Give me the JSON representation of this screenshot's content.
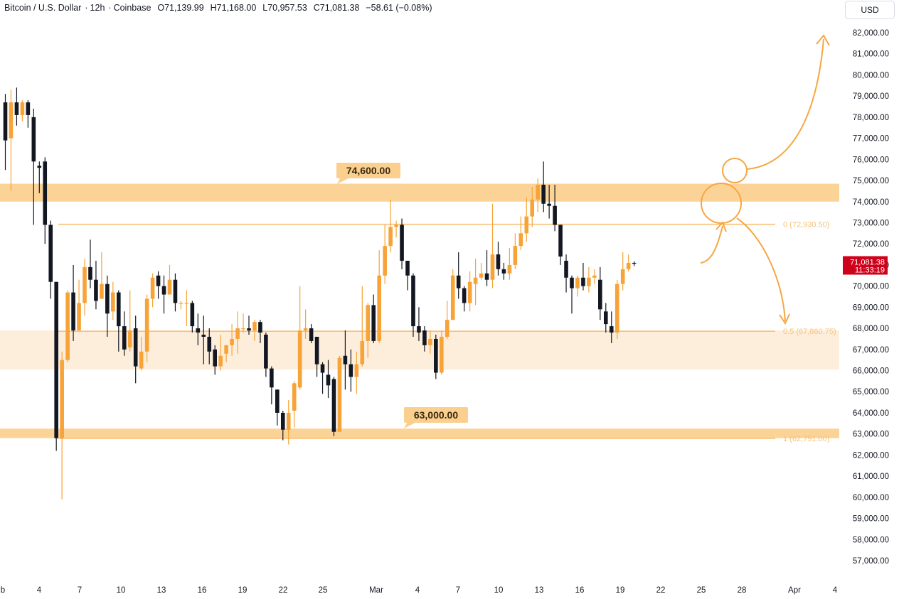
{
  "header": {
    "symbol": "Bitcoin / U.S. Dollar",
    "interval": "12h",
    "exchange": "Coinbase",
    "open": "O71,139.99",
    "high": "H71,168.00",
    "low": "L70,957.53",
    "close": "C71,081.38",
    "change": "−58.61 (−0.08%)"
  },
  "currency_button": "USD",
  "price_tag": {
    "price": "71,081.38",
    "countdown": "11:33:19"
  },
  "colors": {
    "up": "#f7a338",
    "down": "#131722",
    "zone": "#fcd397",
    "zone_light": "#fdeedc",
    "line": "#f9b864",
    "accent": "#f5a742",
    "tag": "#d0021b"
  },
  "chart_data": {
    "type": "candlestick",
    "title": "Bitcoin / U.S. Dollar · 12h · Coinbase",
    "ylabel": "USD",
    "ylim": [
      56000,
      83500
    ],
    "y_ticks": [
      "82,000.00",
      "81,000.00",
      "80,000.00",
      "79,000.00",
      "78,000.00",
      "77,000.00",
      "76,000.00",
      "75,000.00",
      "74,000.00",
      "73,000.00",
      "72,000.00",
      "71,000.00",
      "70,000.00",
      "69,000.00",
      "68,000.00",
      "67,000.00",
      "66,000.00",
      "65,000.00",
      "64,000.00",
      "63,000.00",
      "62,000.00",
      "61,000.00",
      "60,000.00",
      "59,000.00",
      "58,000.00",
      "57,000.00"
    ],
    "x_ticks": [
      "b",
      "4",
      "7",
      "10",
      "13",
      "16",
      "19",
      "22",
      "25",
      "Mar",
      "4",
      "7",
      "10",
      "13",
      "16",
      "19",
      "22",
      "25",
      "28",
      "Apr",
      "4"
    ],
    "candles": [
      [
        78700,
        76900,
        79100,
        75500
      ],
      [
        77000,
        78700,
        79300,
        74500
      ],
      [
        78700,
        78100,
        79400,
        77600
      ],
      [
        78100,
        78700,
        78800,
        77800
      ],
      [
        78700,
        78100,
        78800,
        77500
      ],
      [
        78000,
        75900,
        78400,
        72900
      ],
      [
        75700,
        75600,
        75900,
        74400
      ],
      [
        75900,
        72900,
        76100,
        72000
      ],
      [
        72900,
        70200,
        73100,
        69400
      ],
      [
        70200,
        62800,
        70200,
        62200
      ],
      [
        62800,
        66500,
        66900,
        59900
      ],
      [
        66500,
        69700,
        69800,
        66400
      ],
      [
        69700,
        67900,
        71000,
        67400
      ],
      [
        67900,
        69200,
        70300,
        68100
      ],
      [
        69200,
        70900,
        71300,
        68600
      ],
      [
        70900,
        70300,
        72200,
        69900
      ],
      [
        70300,
        69300,
        71200,
        68900
      ],
      [
        69400,
        70100,
        71600,
        69800
      ],
      [
        70100,
        68700,
        70500,
        67600
      ],
      [
        68800,
        69700,
        70200,
        68400
      ],
      [
        69700,
        68100,
        69800,
        66900
      ],
      [
        68100,
        67000,
        68800,
        66700
      ],
      [
        67100,
        67900,
        69800,
        66900
      ],
      [
        68000,
        66200,
        68600,
        65400
      ],
      [
        66100,
        66900,
        67600,
        66000
      ],
      [
        66900,
        69400,
        69600,
        66400
      ],
      [
        69400,
        70400,
        70600,
        69000
      ],
      [
        70500,
        70000,
        70700,
        69400
      ],
      [
        70000,
        69600,
        70500,
        68700
      ],
      [
        69600,
        70300,
        71000,
        69900
      ],
      [
        70300,
        69200,
        70600,
        68800
      ],
      [
        69200,
        69200,
        69300,
        68900
      ],
      [
        69200,
        69200,
        69800,
        68100
      ],
      [
        69200,
        68100,
        69300,
        67800
      ],
      [
        68000,
        67800,
        68700,
        67200
      ],
      [
        67700,
        67600,
        68600,
        66300
      ],
      [
        67600,
        66900,
        68000,
        66300
      ],
      [
        67000,
        66200,
        67200,
        65800
      ],
      [
        66200,
        66700,
        67700,
        66000
      ],
      [
        66800,
        67200,
        67200,
        66400
      ],
      [
        67200,
        67500,
        68200,
        66700
      ],
      [
        67500,
        68000,
        68800,
        66800
      ],
      [
        68000,
        68000,
        68700,
        67800
      ],
      [
        68000,
        67900,
        68600,
        67700
      ],
      [
        67900,
        68300,
        68400,
        67400
      ],
      [
        68300,
        67800,
        68400,
        67300
      ],
      [
        67700,
        66100,
        67800,
        65700
      ],
      [
        66100,
        65200,
        66200,
        64400
      ],
      [
        65100,
        64000,
        65100,
        63400
      ],
      [
        64000,
        63200,
        64100,
        62700
      ],
      [
        63200,
        64000,
        64600,
        62500
      ],
      [
        64100,
        65400,
        65500,
        63300
      ],
      [
        65200,
        67900,
        70000,
        65100
      ],
      [
        67900,
        68000,
        68900,
        67500
      ],
      [
        68000,
        67400,
        68200,
        67300
      ],
      [
        67600,
        66300,
        67600,
        65700
      ],
      [
        66300,
        65900,
        66400,
        64900
      ],
      [
        65800,
        65300,
        66500,
        64700
      ],
      [
        65600,
        63100,
        65700,
        62900
      ],
      [
        63100,
        66600,
        66700,
        63100
      ],
      [
        66700,
        66300,
        67900,
        65100
      ],
      [
        66300,
        65700,
        67000,
        65000
      ],
      [
        65700,
        66300,
        66900,
        64900
      ],
      [
        66300,
        67400,
        70000,
        66200
      ],
      [
        67400,
        69100,
        69200,
        66600
      ],
      [
        69100,
        67400,
        69600,
        67300
      ],
      [
        67400,
        70500,
        71700,
        67300
      ],
      [
        70500,
        71900,
        72900,
        70100
      ],
      [
        71900,
        72800,
        74100,
        71600
      ],
      [
        72800,
        72900,
        73100,
        72300
      ],
      [
        72900,
        71200,
        73200,
        70800
      ],
      [
        71200,
        70500,
        71200,
        69800
      ],
      [
        70500,
        68100,
        70600,
        67600
      ],
      [
        68100,
        67800,
        69000,
        67400
      ],
      [
        67900,
        67200,
        68100,
        66900
      ],
      [
        67200,
        67500,
        67900,
        66800
      ],
      [
        67500,
        65900,
        67700,
        65600
      ],
      [
        65900,
        67600,
        67900,
        65800
      ],
      [
        67600,
        68400,
        69300,
        67500
      ],
      [
        68400,
        70500,
        70800,
        68400
      ],
      [
        70500,
        69900,
        71600,
        69400
      ],
      [
        69900,
        69200,
        70000,
        68800
      ],
      [
        69200,
        70200,
        70700,
        68800
      ],
      [
        70100,
        70400,
        71300,
        69100
      ],
      [
        70400,
        70600,
        71100,
        70300
      ],
      [
        70600,
        70300,
        71700,
        70000
      ],
      [
        70300,
        71500,
        73900,
        69900
      ],
      [
        71500,
        70800,
        72100,
        70500
      ],
      [
        70800,
        70600,
        71100,
        70300
      ],
      [
        70600,
        71000,
        71800,
        70300
      ],
      [
        71000,
        71900,
        72500,
        70800
      ],
      [
        71900,
        72500,
        73300,
        71700
      ],
      [
        72500,
        73300,
        74200,
        72100
      ],
      [
        73300,
        74100,
        74700,
        72800
      ],
      [
        74100,
        74800,
        75100,
        73500
      ],
      [
        74800,
        73900,
        75900,
        73500
      ],
      [
        73900,
        73800,
        74800,
        73200
      ],
      [
        73800,
        72900,
        74800,
        72600
      ],
      [
        72900,
        71400,
        72900,
        71000
      ],
      [
        71200,
        70400,
        71500,
        69700
      ],
      [
        70400,
        69900,
        70500,
        68700
      ],
      [
        69900,
        70400,
        70500,
        69500
      ],
      [
        70400,
        70000,
        71100,
        69800
      ],
      [
        70000,
        70400,
        70900,
        69700
      ],
      [
        70400,
        70500,
        70800,
        70100
      ],
      [
        70300,
        68900,
        70900,
        68400
      ],
      [
        68800,
        68200,
        69200,
        67800
      ],
      [
        68100,
        67800,
        68800,
        67300
      ],
      [
        67800,
        70100,
        70300,
        67500
      ],
      [
        70100,
        70800,
        71600,
        69800
      ],
      [
        70800,
        71100,
        71500,
        70700
      ],
      [
        71100,
        71080,
        71170,
        70950
      ]
    ],
    "resistance_zone": {
      "from": 74000,
      "to": 74850,
      "label": "74,600.00"
    },
    "support_zone": {
      "from": 62800,
      "to": 63250,
      "label": "63,000.00"
    },
    "mid_zone": {
      "from": 66050,
      "to": 67900
    },
    "fib_levels": [
      {
        "value": 72930.5,
        "label": "0 (72,930.50)"
      },
      {
        "value": 67860.75,
        "label": "0.5 (67,860.75)"
      },
      {
        "value": 62791,
        "label": "1 (62,791.00)"
      }
    ],
    "annotations": [
      "circle at resistance breakout area",
      "projected path up to 82,000",
      "projected path down to 67,860.75"
    ]
  }
}
